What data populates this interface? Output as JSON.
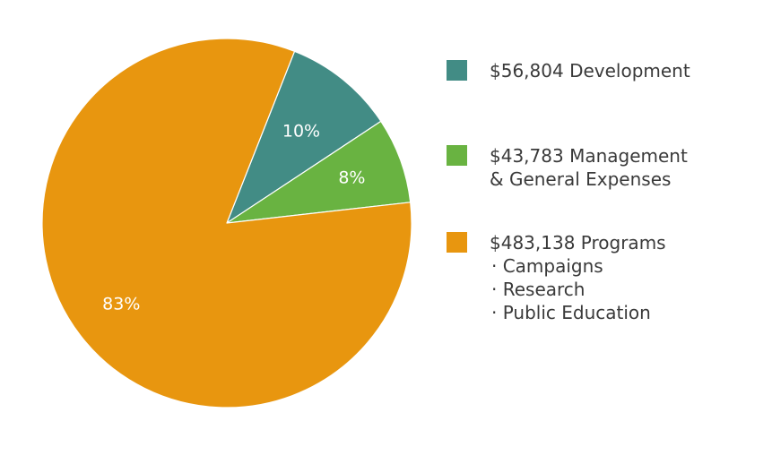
{
  "chart_data": {
    "type": "pie",
    "slices": [
      {
        "label": "Development",
        "amount": "$56,804",
        "value": 56804,
        "percent_label": "10%",
        "color": "#428c85",
        "legend_lines": [
          "$56,804 Development"
        ]
      },
      {
        "label": "Management & General Expenses",
        "amount": "$43,783",
        "value": 43783,
        "percent_label": "8%",
        "color": "#69b341",
        "legend_lines": [
          "$43,783 Management",
          "& General Expenses"
        ]
      },
      {
        "label": "Programs",
        "amount": "$483,138",
        "value": 483138,
        "percent_label": "83%",
        "color": "#e8960f",
        "legend_lines": [
          "$483,138 Programs",
          "· Campaigns",
          "· Research",
          "· Public Education"
        ]
      }
    ]
  }
}
